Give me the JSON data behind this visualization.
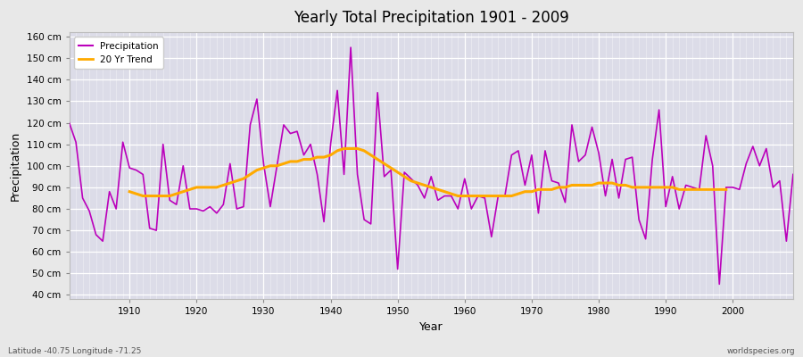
{
  "title": "Yearly Total Precipitation 1901 - 2009",
  "xlabel": "Year",
  "ylabel": "Precipitation",
  "background_color": "#e8e8e8",
  "plot_bg_color": "#dcdce8",
  "precip_color": "#bb00bb",
  "trend_color": "#ffaa00",
  "precip_label": "Precipitation",
  "trend_label": "20 Yr Trend",
  "footer_left": "Latitude -40.75 Longitude -71.25",
  "footer_right": "worldspecies.org",
  "ylim": [
    38,
    162
  ],
  "yticks": [
    40,
    50,
    60,
    70,
    80,
    90,
    100,
    110,
    120,
    130,
    140,
    150,
    160
  ],
  "ytick_labels": [
    "40 cm",
    "50 cm",
    "60 cm",
    "70 cm",
    "80 cm",
    "90 cm",
    "100 cm",
    "110 cm",
    "120 cm",
    "130 cm",
    "140 cm",
    "150 cm",
    "160 cm"
  ],
  "years": [
    1901,
    1902,
    1903,
    1904,
    1905,
    1906,
    1907,
    1908,
    1909,
    1910,
    1911,
    1912,
    1913,
    1914,
    1915,
    1916,
    1917,
    1918,
    1919,
    1920,
    1921,
    1922,
    1923,
    1924,
    1925,
    1926,
    1927,
    1928,
    1929,
    1930,
    1931,
    1932,
    1933,
    1934,
    1935,
    1936,
    1937,
    1938,
    1939,
    1940,
    1941,
    1942,
    1943,
    1944,
    1945,
    1946,
    1947,
    1948,
    1949,
    1950,
    1951,
    1952,
    1953,
    1954,
    1955,
    1956,
    1957,
    1958,
    1959,
    1960,
    1961,
    1962,
    1963,
    1964,
    1965,
    1966,
    1967,
    1968,
    1969,
    1970,
    1971,
    1972,
    1973,
    1974,
    1975,
    1976,
    1977,
    1978,
    1979,
    1980,
    1981,
    1982,
    1983,
    1984,
    1985,
    1986,
    1987,
    1988,
    1989,
    1990,
    1991,
    1992,
    1993,
    1994,
    1995,
    1996,
    1997,
    1998,
    1999,
    2000,
    2001,
    2002,
    2003,
    2004,
    2005,
    2006,
    2007,
    2008,
    2009
  ],
  "precipitation": [
    120,
    111,
    85,
    79,
    68,
    65,
    88,
    80,
    111,
    99,
    98,
    96,
    71,
    70,
    110,
    84,
    82,
    100,
    80,
    80,
    79,
    81,
    78,
    82,
    101,
    80,
    81,
    119,
    131,
    101,
    81,
    100,
    119,
    115,
    116,
    105,
    110,
    96,
    74,
    110,
    135,
    96,
    155,
    96,
    75,
    73,
    134,
    95,
    98,
    52,
    97,
    94,
    91,
    85,
    95,
    84,
    86,
    86,
    80,
    94,
    80,
    86,
    85,
    67,
    86,
    86,
    105,
    107,
    91,
    105,
    78,
    107,
    93,
    92,
    83,
    119,
    102,
    105,
    118,
    106,
    86,
    103,
    85,
    103,
    104,
    75,
    66,
    103,
    126,
    81,
    95,
    80,
    91,
    90,
    89,
    114,
    100,
    45,
    90,
    90,
    89,
    101,
    109,
    100,
    108,
    90,
    93,
    65,
    96
  ],
  "trend": [
    null,
    null,
    null,
    null,
    null,
    null,
    null,
    null,
    null,
    88,
    87,
    86,
    86,
    86,
    86,
    86,
    87,
    88,
    89,
    90,
    90,
    90,
    90,
    91,
    92,
    93,
    94,
    96,
    98,
    99,
    100,
    100,
    101,
    102,
    102,
    103,
    103,
    104,
    104,
    105,
    107,
    108,
    108,
    108,
    107,
    105,
    103,
    101,
    99,
    97,
    95,
    93,
    92,
    91,
    90,
    89,
    88,
    87,
    86,
    86,
    86,
    86,
    86,
    86,
    86,
    86,
    86,
    87,
    88,
    88,
    89,
    89,
    89,
    90,
    90,
    91,
    91,
    91,
    91,
    92,
    92,
    92,
    91,
    91,
    90,
    90,
    90,
    90,
    90,
    90,
    90,
    89,
    89,
    89,
    89,
    89,
    89,
    89,
    89
  ]
}
